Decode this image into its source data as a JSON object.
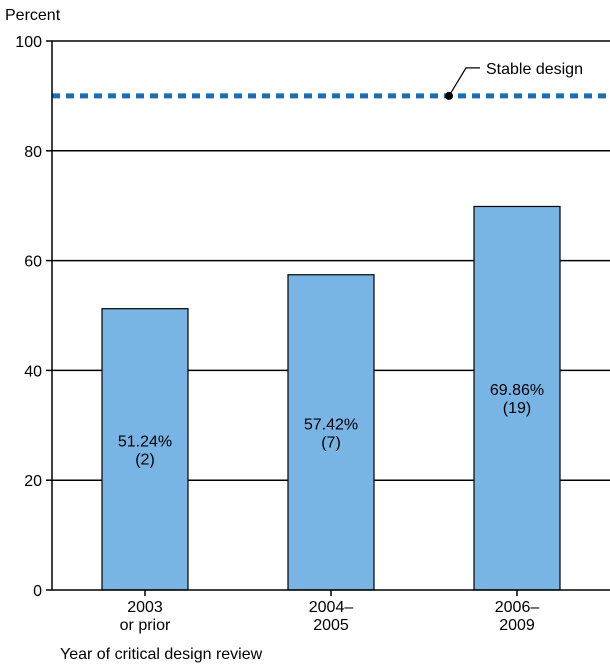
{
  "chart_data": {
    "type": "bar",
    "ylabel": "Percent",
    "xlabel": "Year of critical design review",
    "ylim": [
      0,
      100
    ],
    "yticks": [
      0,
      20,
      40,
      60,
      80,
      100
    ],
    "grid": true,
    "categories": [
      [
        "2003",
        "or prior"
      ],
      [
        "2004–",
        "2005"
      ],
      [
        "2006–",
        "2009"
      ]
    ],
    "values": [
      51.24,
      57.42,
      69.86
    ],
    "data_labels": [
      [
        "51.24%",
        "(2)"
      ],
      [
        "57.42%",
        "(7)"
      ],
      [
        "69.86%",
        "(19)"
      ]
    ],
    "reference_line": {
      "value": 90,
      "label": "Stable design",
      "style": "dashed"
    },
    "colors": {
      "bar_fill": "#78b4e4",
      "bar_stroke": "#000000",
      "reference_line": "#1a6eb5",
      "grid": "#000000"
    }
  }
}
